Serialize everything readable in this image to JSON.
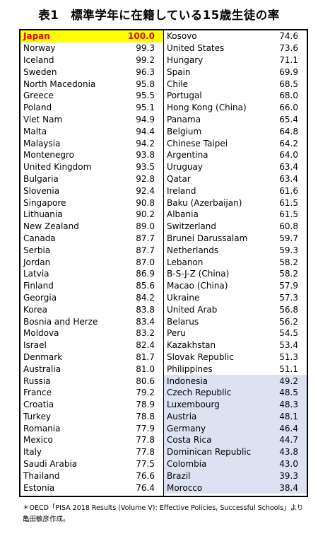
{
  "title": "表1　標準学年に在籍している15歳生徒の率",
  "note": {
    "line1": "＊OECD「PISA 2018 Results (Volume V): Effective Policies, Successful Schools」より",
    "line2": "亀田敏彦作成。"
  },
  "colors": {
    "highlight_bg": "#ffff00",
    "highlight_text": "#e60000",
    "shaded_bg": "#dde2f3"
  },
  "left_rows": [
    {
      "country": "Japan",
      "value": "100.0"
    },
    {
      "country": "Norway",
      "value": "99.3"
    },
    {
      "country": "Iceland",
      "value": "99.2"
    },
    {
      "country": "Sweden",
      "value": "96.3"
    },
    {
      "country": "North Macedonia",
      "value": "95.8"
    },
    {
      "country": "Greece",
      "value": "95.5"
    },
    {
      "country": "Poland",
      "value": "95.1"
    },
    {
      "country": "Viet Nam",
      "value": "94.9"
    },
    {
      "country": "Malta",
      "value": "94.4"
    },
    {
      "country": "Malaysia",
      "value": "94.2"
    },
    {
      "country": "Montenegro",
      "value": "93.8"
    },
    {
      "country": "United Kingdom",
      "value": "93.5"
    },
    {
      "country": "Bulgaria",
      "value": "92.8"
    },
    {
      "country": "Slovenia",
      "value": "92.4"
    },
    {
      "country": "Singapore",
      "value": "90.8"
    },
    {
      "country": "Lithuania",
      "value": "90.2"
    },
    {
      "country": "New Zealand",
      "value": "89.0"
    },
    {
      "country": "Canada",
      "value": "87.7"
    },
    {
      "country": "Serbia",
      "value": "87.7"
    },
    {
      "country": "Jordan",
      "value": "87.0"
    },
    {
      "country": "Latvia",
      "value": "86.9"
    },
    {
      "country": "Finland",
      "value": "85.6"
    },
    {
      "country": "Georgia",
      "value": "84.2"
    },
    {
      "country": "Korea",
      "value": "83.8"
    },
    {
      "country": "Bosnia and Herze",
      "value": "83.4"
    },
    {
      "country": "Moldova",
      "value": "83.2"
    },
    {
      "country": "Israel",
      "value": "82.4"
    },
    {
      "country": "Denmark",
      "value": "81.7"
    },
    {
      "country": "Australia",
      "value": "81.0"
    },
    {
      "country": "Russia",
      "value": "80.6"
    },
    {
      "country": "France",
      "value": "79.2"
    },
    {
      "country": "Croatia",
      "value": "78.9"
    },
    {
      "country": "Turkey",
      "value": "78.8"
    },
    {
      "country": "Romania",
      "value": "77.9"
    },
    {
      "country": "Mexico",
      "value": "77.8"
    },
    {
      "country": "Italy",
      "value": "77.8"
    },
    {
      "country": "Saudi Arabia",
      "value": "77.5"
    },
    {
      "country": "Thailand",
      "value": "76.6"
    },
    {
      "country": "Estonia",
      "value": "76.4"
    }
  ],
  "right_rows": [
    {
      "country": "Kosovo",
      "value": "74.6"
    },
    {
      "country": "United States",
      "value": "73.6"
    },
    {
      "country": "Hungary",
      "value": "71.1"
    },
    {
      "country": "Spain",
      "value": "69.9"
    },
    {
      "country": "Chile",
      "value": "68.5"
    },
    {
      "country": "Portugal",
      "value": "68.0"
    },
    {
      "country": "Hong Kong (China)",
      "value": "66.0"
    },
    {
      "country": "Panama",
      "value": "65.4"
    },
    {
      "country": "Belgium",
      "value": "64.8"
    },
    {
      "country": "Chinese Taipei",
      "value": "64.2"
    },
    {
      "country": "Argentina",
      "value": "64.0"
    },
    {
      "country": "Uruguay",
      "value": "63.4"
    },
    {
      "country": "Qatar",
      "value": "63.4"
    },
    {
      "country": "Ireland",
      "value": "61.6"
    },
    {
      "country": "Baku (Azerbaijan)",
      "value": "61.5"
    },
    {
      "country": "Albania",
      "value": "61.5"
    },
    {
      "country": "Switzerland",
      "value": "60.8"
    },
    {
      "country": "Brunei Darussalam",
      "value": "59.7"
    },
    {
      "country": "Netherlands",
      "value": "59.3"
    },
    {
      "country": "Lebanon",
      "value": "58.2"
    },
    {
      "country": "B-S-J-Z (China)",
      "value": "58.2"
    },
    {
      "country": "Macao (China)",
      "value": "57.9"
    },
    {
      "country": "Ukraine",
      "value": "57.3"
    },
    {
      "country": "United Arab",
      "value": "56.8"
    },
    {
      "country": "Belarus",
      "value": "56.2"
    },
    {
      "country": "Peru",
      "value": "54.5"
    },
    {
      "country": "Kazakhstan",
      "value": "53.4"
    },
    {
      "country": "Slovak Republic",
      "value": "51.3"
    },
    {
      "country": "Philippines",
      "value": "51.1"
    },
    {
      "country": "Indonesia",
      "value": "49.2"
    },
    {
      "country": "Czech Republic",
      "value": "48.5"
    },
    {
      "country": "Luxembourg",
      "value": "48.3"
    },
    {
      "country": "Austria",
      "value": "48.1"
    },
    {
      "country": "Germany",
      "value": "46.4"
    },
    {
      "country": "Costa Rica",
      "value": "44.7"
    },
    {
      "country": "Dominican Republic",
      "value": "43.8"
    },
    {
      "country": "Colombia",
      "value": "43.0"
    },
    {
      "country": "Brazil",
      "value": "39.3"
    },
    {
      "country": "Morocco",
      "value": "38.4"
    }
  ]
}
